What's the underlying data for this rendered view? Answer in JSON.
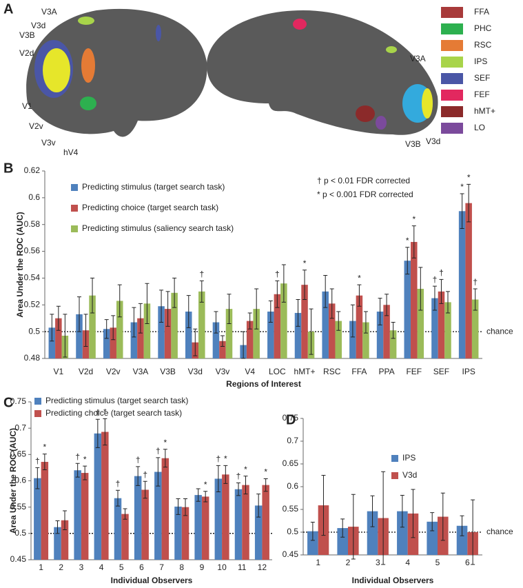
{
  "panel_a": {
    "letter": "A",
    "legend": [
      {
        "name": "FFA",
        "color": "#a83a3a"
      },
      {
        "name": "PHC",
        "color": "#2db04f"
      },
      {
        "name": "RSC",
        "color": "#e57b35"
      },
      {
        "name": "IPS",
        "color": "#a8d44a"
      },
      {
        "name": "SEF",
        "color": "#4a56a6"
      },
      {
        "name": "FEF",
        "color": "#e2285f"
      },
      {
        "name": "hMT+",
        "color": "#8b2a2a"
      },
      {
        "name": "LO",
        "color": "#7b4a9c"
      }
    ],
    "labels": [
      "V3A",
      "V3d",
      "V3B",
      "V2d",
      "V1",
      "V2v",
      "V3v",
      "hV4",
      "V3A",
      "V3B",
      "V3d"
    ]
  },
  "chart_data": [
    {
      "type": "bar",
      "letter": "B",
      "ylabel": "Area Under the ROC (AUC)",
      "xlabel": "Regions of Interest",
      "categories": [
        "V1",
        "V2d",
        "V2v",
        "V3A",
        "V3B",
        "V3d",
        "V3v",
        "V4",
        "LOC",
        "hMT+",
        "RSC",
        "FFA",
        "PPA",
        "FEF",
        "SEF",
        "IPS"
      ],
      "series": [
        {
          "name": "Predicting stimulus (target search task)",
          "color": "#4f81bd",
          "values": [
            0.503,
            0.513,
            0.502,
            0.507,
            0.519,
            0.515,
            0.507,
            0.49,
            0.515,
            0.514,
            0.53,
            0.508,
            0.515,
            0.553,
            0.525,
            0.59
          ],
          "errors": [
            0.01,
            0.013,
            0.007,
            0.011,
            0.012,
            0.012,
            0.008,
            0.01,
            0.008,
            0.01,
            0.012,
            0.012,
            0.01,
            0.01,
            0.009,
            0.013
          ],
          "markers": [
            null,
            null,
            null,
            null,
            null,
            null,
            null,
            null,
            null,
            null,
            null,
            null,
            null,
            "*",
            "†",
            "*"
          ]
        },
        {
          "name": "Predicting choice (target search task)",
          "color": "#c0504d",
          "values": [
            0.51,
            0.501,
            0.503,
            0.51,
            0.517,
            0.492,
            0.493,
            0.508,
            0.528,
            0.535,
            0.521,
            0.527,
            0.52,
            0.567,
            0.53,
            0.596
          ],
          "errors": [
            0.009,
            0.012,
            0.009,
            0.011,
            0.013,
            0.01,
            0.004,
            0.006,
            0.01,
            0.011,
            0.011,
            0.008,
            0.008,
            0.012,
            0.009,
            0.014
          ],
          "markers": [
            null,
            null,
            null,
            null,
            null,
            null,
            null,
            null,
            "†",
            "*",
            null,
            "*",
            null,
            "*",
            "†",
            "*"
          ]
        },
        {
          "name": "Predicting stimulus (saliency search task)",
          "color": "#9bbb59",
          "values": [
            0.497,
            0.527,
            0.523,
            0.521,
            0.529,
            0.53,
            0.517,
            0.517,
            0.536,
            0.5,
            0.508,
            0.507,
            0.501,
            0.532,
            0.522,
            0.524
          ],
          "errors": [
            0.016,
            0.013,
            0.012,
            0.015,
            0.011,
            0.008,
            0.011,
            0.015,
            0.014,
            0.017,
            0.007,
            0.008,
            0.006,
            0.016,
            0.008,
            0.008
          ],
          "markers": [
            null,
            null,
            null,
            null,
            null,
            "†",
            null,
            null,
            null,
            null,
            null,
            null,
            null,
            null,
            null,
            "†"
          ]
        }
      ],
      "notes": [
        "† p < 0.01 FDR corrected",
        "* p < 0.001 FDR corrected"
      ],
      "reference_line": {
        "value": 0.5,
        "label": "chance"
      },
      "ylim": [
        0.48,
        0.62
      ],
      "yticks": [
        0.48,
        0.5,
        0.52,
        0.54,
        0.56,
        0.58,
        0.6,
        0.62
      ]
    },
    {
      "type": "bar",
      "letter": "C",
      "ylabel": "Area Under the ROC (AUC)",
      "xlabel": "Individual Observers",
      "categories": [
        "1",
        "2",
        "3",
        "4",
        "5",
        "6",
        "7",
        "8",
        "9",
        "10",
        "11",
        "12"
      ],
      "series": [
        {
          "name": "Predicting stimulus (target search task)",
          "color": "#4f81bd",
          "values": [
            0.605,
            0.512,
            0.62,
            0.69,
            0.567,
            0.609,
            0.617,
            0.551,
            0.573,
            0.604,
            0.584,
            0.553
          ],
          "errors": [
            0.02,
            0.012,
            0.013,
            0.027,
            0.015,
            0.018,
            0.027,
            0.015,
            0.012,
            0.025,
            0.012,
            0.022
          ],
          "markers": [
            "†",
            null,
            "†",
            "†",
            "†",
            "†",
            "†",
            null,
            null,
            "†",
            "†",
            null
          ]
        },
        {
          "name": "Predicting choice (target search task)",
          "color": "#c0504d",
          "values": [
            0.636,
            0.525,
            0.615,
            0.693,
            0.537,
            0.583,
            0.643,
            0.55,
            0.57,
            0.612,
            0.592,
            0.592
          ],
          "errors": [
            0.015,
            0.018,
            0.013,
            0.025,
            0.01,
            0.016,
            0.017,
            0.016,
            0.01,
            0.017,
            0.017,
            0.012
          ],
          "markers": [
            "*",
            null,
            "*",
            "*",
            null,
            "†",
            "*",
            null,
            "*",
            "*",
            "*",
            "*"
          ]
        }
      ],
      "reference_line": {
        "value": 0.5
      },
      "ylim": [
        0.45,
        0.75
      ],
      "yticks": [
        0.45,
        0.5,
        0.55,
        0.6,
        0.65,
        0.7,
        0.75
      ]
    },
    {
      "type": "bar",
      "letter": "D",
      "xlabel": "Individual Observers",
      "categories": [
        "1",
        "2",
        "3",
        "4",
        "5",
        "6"
      ],
      "series": [
        {
          "name": "IPS",
          "color": "#4f81bd",
          "values": [
            0.502,
            0.509,
            0.546,
            0.546,
            0.523,
            0.514
          ],
          "errors": [
            0.02,
            0.02,
            0.034,
            0.035,
            0.02,
            0.022
          ]
        },
        {
          "name": "V3d",
          "color": "#c0504d",
          "values": [
            0.559,
            0.512,
            0.531,
            0.541,
            0.534,
            0.5
          ],
          "errors": [
            0.066,
            0.071,
            0.102,
            0.053,
            0.052,
            0.071
          ]
        }
      ],
      "reference_line": {
        "value": 0.5,
        "label": "chance"
      },
      "ylim": [
        0.45,
        0.75
      ],
      "yticks": [
        0.45,
        0.5,
        0.55,
        0.6,
        0.65,
        0.7,
        0.75
      ]
    }
  ]
}
